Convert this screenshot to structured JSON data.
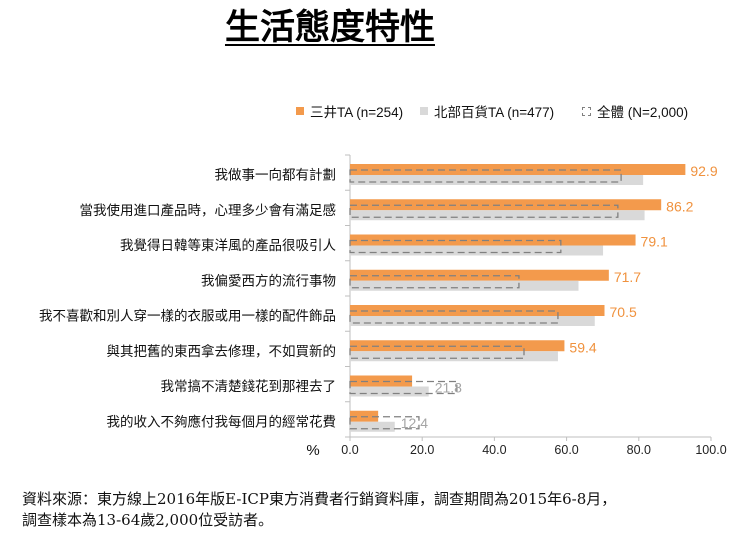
{
  "title": "生活態度特性",
  "chart_data": {
    "type": "bar",
    "orientation": "horizontal",
    "categories": [
      "我做事一向都有計劃",
      "當我使用進口產品時，心理多少會有滿足感",
      "我覺得日韓等東洋風的產品很吸引人",
      "我偏愛西方的流行事物",
      "我不喜歡和別人穿一樣的衣服或用一樣的配件飾品",
      "與其把舊的東西拿去修理，不如買新的",
      "我常搞不清楚錢花到那裡去了",
      "我的收入不夠應付我每個月的經常花費"
    ],
    "series": [
      {
        "name": "三井TA (n=254)",
        "values": [
          92.9,
          86.2,
          79.1,
          71.7,
          70.5,
          59.4,
          17.2,
          7.8
        ],
        "labels": [
          "92.9",
          "86.2",
          "79.1",
          "71.7",
          "70.5",
          "59.4",
          null,
          null
        ],
        "color": "#F39A4C",
        "label_color": "#F0923E",
        "style": "solid"
      },
      {
        "name": "北部百貨TA (n=477)",
        "values": [
          81.2,
          81.6,
          70.1,
          63.3,
          67.8,
          57.6,
          21.8,
          12.4
        ],
        "labels": [
          null,
          null,
          null,
          null,
          null,
          null,
          "21.8",
          "12.4"
        ],
        "color": "#D9D9D9",
        "label_color": "#A5A5A5",
        "style": "solid"
      },
      {
        "name": "全體 (N=2,000)",
        "values": [
          75.1,
          74.2,
          58.4,
          46.8,
          57.6,
          48.2,
          29.6,
          19.1
        ],
        "color": "#808080",
        "style": "dashed-outline"
      }
    ],
    "xlabel": "%",
    "xlim": [
      0,
      100
    ],
    "xticks": [
      "0.0",
      "20.0",
      "40.0",
      "60.0",
      "80.0",
      "100.0"
    ],
    "grid": false,
    "legend_position": "top-right"
  },
  "source_note": {
    "line1": "資料來源：東方線上2016年版E-ICP東方消費者行銷資料庫，調查期間為2015年6-8月，",
    "line2": "調查樣本為13-64歲2,000位受訪者。"
  }
}
